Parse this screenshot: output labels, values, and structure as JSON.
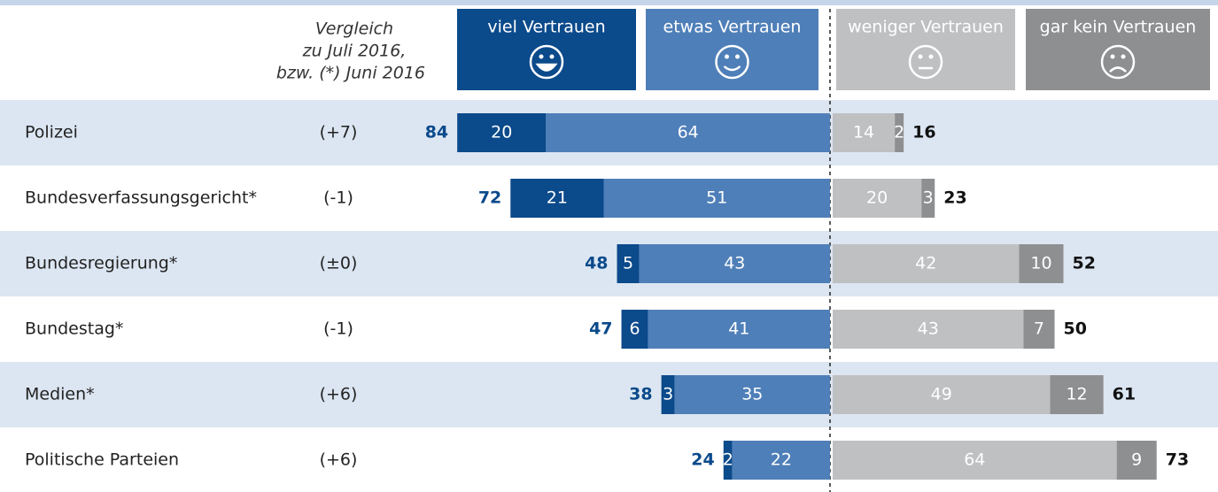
{
  "chart_data": {
    "type": "diverging_bar",
    "header_note": [
      "Vergleich",
      "zu Juli 2016,",
      "bzw. (*) Juni 2016"
    ],
    "categories": [
      "Polizei",
      "Bundesverfassungsgericht*",
      "Bundesregierung*",
      "Bundestag*",
      "Medien*",
      "Politische Parteien"
    ],
    "changes": [
      "(+7)",
      "(-1)",
      "(±0)",
      "(-1)",
      "(+6)",
      "(+6)"
    ],
    "series": [
      {
        "name": "viel Vertrauen",
        "color": "#0b4a8b",
        "values": [
          20,
          21,
          5,
          6,
          3,
          2
        ]
      },
      {
        "name": "etwas Vertrauen",
        "color": "#4f7fb8",
        "values": [
          64,
          51,
          43,
          41,
          35,
          22
        ]
      },
      {
        "name": "weniger Vertrauen",
        "color": "#bfc0c2",
        "values": [
          14,
          20,
          42,
          43,
          49,
          64
        ]
      },
      {
        "name": "gar kein Vertrauen",
        "color": "#8e8f91",
        "values": [
          2,
          3,
          10,
          7,
          12,
          9
        ]
      }
    ],
    "totals_positive": [
      84,
      72,
      48,
      47,
      38,
      24
    ],
    "totals_negative": [
      16,
      23,
      52,
      50,
      61,
      73
    ]
  }
}
